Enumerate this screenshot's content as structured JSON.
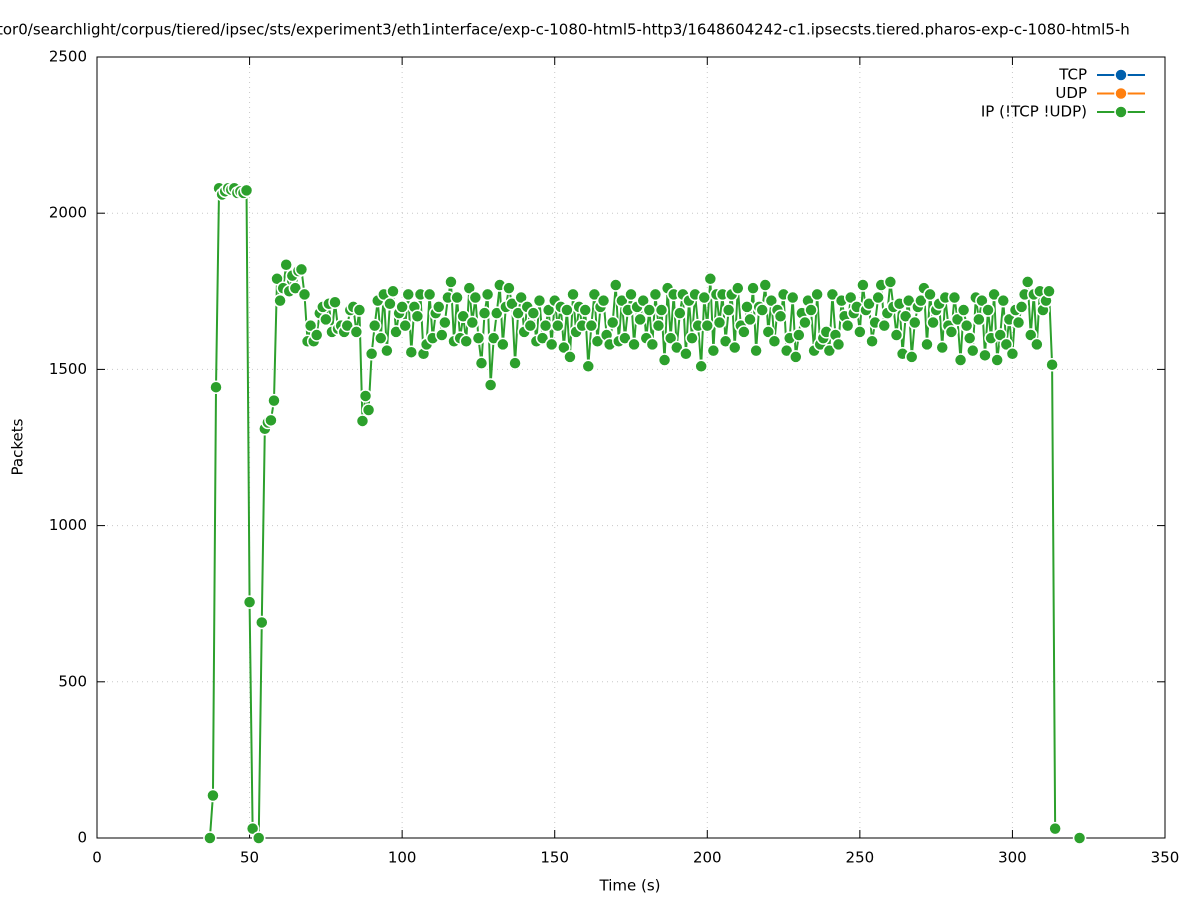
{
  "chart_data": {
    "type": "line",
    "title": "tor0/searchlight/corpus/tiered/ipsec/sts/experiment3/eth1interface/exp-c-1080-html5-http3/1648604242-c1.ipsecsts.tiered.pharos-exp-c-1080-html5-h",
    "x_label": "Time (s)",
    "y_label": "Packets",
    "xlim": [
      0,
      350
    ],
    "xticks": [
      0,
      50,
      100,
      150,
      200,
      250,
      300,
      350
    ],
    "ylim": [
      0,
      2500
    ],
    "yticks": [
      0,
      500,
      1000,
      1500,
      2000,
      2500
    ],
    "grid": true,
    "legend": "top-right",
    "series": [
      {
        "name": "TCP",
        "color": "#0060ad",
        "x": [],
        "values": []
      },
      {
        "name": "UDP",
        "color": "#ff7f0e",
        "x": [],
        "values": []
      },
      {
        "name": "IP (!TCP  !UDP)",
        "color": "#2ca02c",
        "x": [
          37,
          38,
          39,
          40,
          41,
          42,
          43,
          44,
          45,
          46,
          47,
          48,
          49,
          50,
          51,
          52,
          53,
          54,
          55,
          56,
          57,
          58,
          59,
          60,
          61,
          62,
          63,
          64,
          65,
          66,
          67,
          68,
          69,
          70,
          71,
          72,
          73,
          74,
          75,
          76,
          77,
          78,
          79,
          80,
          81,
          82,
          83,
          84,
          85,
          86,
          87,
          88,
          89,
          90,
          91,
          92,
          93,
          94,
          95,
          96,
          97,
          98,
          99,
          100,
          101,
          102,
          103,
          104,
          105,
          106,
          107,
          108,
          109,
          110,
          111,
          112,
          113,
          114,
          115,
          116,
          117,
          118,
          119,
          120,
          121,
          122,
          123,
          124,
          125,
          126,
          127,
          128,
          129,
          130,
          131,
          132,
          133,
          134,
          135,
          136,
          137,
          138,
          139,
          140,
          141,
          142,
          143,
          144,
          145,
          146,
          147,
          148,
          149,
          150,
          151,
          152,
          153,
          154,
          155,
          156,
          157,
          158,
          159,
          160,
          161,
          162,
          163,
          164,
          165,
          166,
          167,
          168,
          169,
          170,
          171,
          172,
          173,
          174,
          175,
          176,
          177,
          178,
          179,
          180,
          181,
          182,
          183,
          184,
          185,
          186,
          187,
          188,
          189,
          190,
          191,
          192,
          193,
          194,
          195,
          196,
          197,
          198,
          199,
          200,
          201,
          202,
          203,
          204,
          205,
          206,
          207,
          208,
          209,
          210,
          211,
          212,
          213,
          214,
          215,
          216,
          217,
          218,
          219,
          220,
          221,
          222,
          223,
          224,
          225,
          226,
          227,
          228,
          229,
          230,
          231,
          232,
          233,
          234,
          235,
          236,
          237,
          238,
          239,
          240,
          241,
          242,
          243,
          244,
          245,
          246,
          247,
          248,
          249,
          250,
          251,
          252,
          253,
          254,
          255,
          256,
          257,
          258,
          259,
          260,
          261,
          262,
          263,
          264,
          265,
          266,
          267,
          268,
          269,
          270,
          271,
          272,
          273,
          274,
          275,
          276,
          277,
          278,
          279,
          280,
          281,
          282,
          283,
          284,
          285,
          286,
          287,
          288,
          289,
          290,
          291,
          292,
          293,
          294,
          295,
          296,
          297,
          298,
          299,
          300,
          301,
          302,
          303,
          304,
          305,
          306,
          307,
          308,
          309,
          310,
          311,
          312,
          313,
          314,
          315,
          322
        ],
        "values": [
          0,
          136,
          1443,
          2080,
          2060,
          2070,
          2080,
          2075,
          2080,
          2065,
          2070,
          2065,
          2073,
          755,
          30,
          null,
          0,
          690,
          1310,
          1330,
          1337,
          1400,
          1790,
          1720,
          1760,
          1835,
          1750,
          1800,
          1760,
          1815,
          1820,
          1740,
          1590,
          1640,
          1590,
          1610,
          1680,
          1700,
          1660,
          1710,
          1620,
          1715,
          1630,
          1640,
          1620,
          1640,
          1690,
          1700,
          1620,
          1690,
          1335,
          1415,
          1370,
          1550,
          1640,
          1720,
          1600,
          1740,
          1560,
          1710,
          1750,
          1620,
          1680,
          1700,
          1640,
          1740,
          1555,
          1700,
          1670,
          1740,
          1550,
          1580,
          1740,
          1600,
          1680,
          1700,
          1610,
          1650,
          1730,
          1780,
          1590,
          1730,
          1600,
          1670,
          1590,
          1760,
          1650,
          1730,
          1600,
          1520,
          1680,
          1740,
          1450,
          1600,
          1680,
          1770,
          1580,
          1700,
          1760,
          1710,
          1520,
          1680,
          1730,
          1620,
          1700,
          1640,
          1680,
          1590,
          1720,
          1600,
          1640,
          1690,
          1580,
          1720,
          1640,
          1700,
          1570,
          1690,
          1540,
          1740,
          1620,
          1700,
          1640,
          1690,
          1510,
          1640,
          1740,
          1590,
          1700,
          1720,
          1610,
          1580,
          1650,
          1770,
          1590,
          1720,
          1600,
          1690,
          1740,
          1580,
          1700,
          1660,
          1720,
          1600,
          1690,
          1580,
          1740,
          1640,
          1690,
          1530,
          1760,
          1600,
          1740,
          1570,
          1680,
          1740,
          1550,
          1720,
          1600,
          1740,
          1640,
          1510,
          1730,
          1640,
          1790,
          1560,
          1740,
          1650,
          1740,
          1590,
          1690,
          1740,
          1570,
          1760,
          1640,
          1620,
          1700,
          1660,
          1760,
          1560,
          1700,
          1690,
          1770,
          1620,
          1720,
          1590,
          1690,
          1670,
          1740,
          1560,
          1600,
          1730,
          1540,
          1610,
          1680,
          1650,
          1720,
          1690,
          1560,
          1740,
          1580,
          1600,
          1620,
          1560,
          1740,
          1610,
          1580,
          1720,
          1670,
          1640,
          1730,
          1680,
          1700,
          1620,
          1770,
          1690,
          1710,
          1590,
          1650,
          1730,
          1770,
          1640,
          1680,
          1780,
          1700,
          1610,
          1710,
          1550,
          1670,
          1720,
          1540,
          1650,
          1700,
          1720,
          1760,
          1580,
          1740,
          1650,
          1690,
          1710,
          1570,
          1730,
          1640,
          1620,
          1730,
          1660,
          1530,
          1690,
          1640,
          1600,
          1560,
          1730,
          1660,
          1720,
          1545,
          1690,
          1600,
          1740,
          1530,
          1610,
          1720,
          1580,
          1660,
          1550,
          1690,
          1650,
          1700,
          1740,
          1780,
          1610,
          1740,
          1580,
          1750,
          1690,
          1720,
          1750,
          1515,
          30,
          null,
          0
        ]
      }
    ]
  }
}
